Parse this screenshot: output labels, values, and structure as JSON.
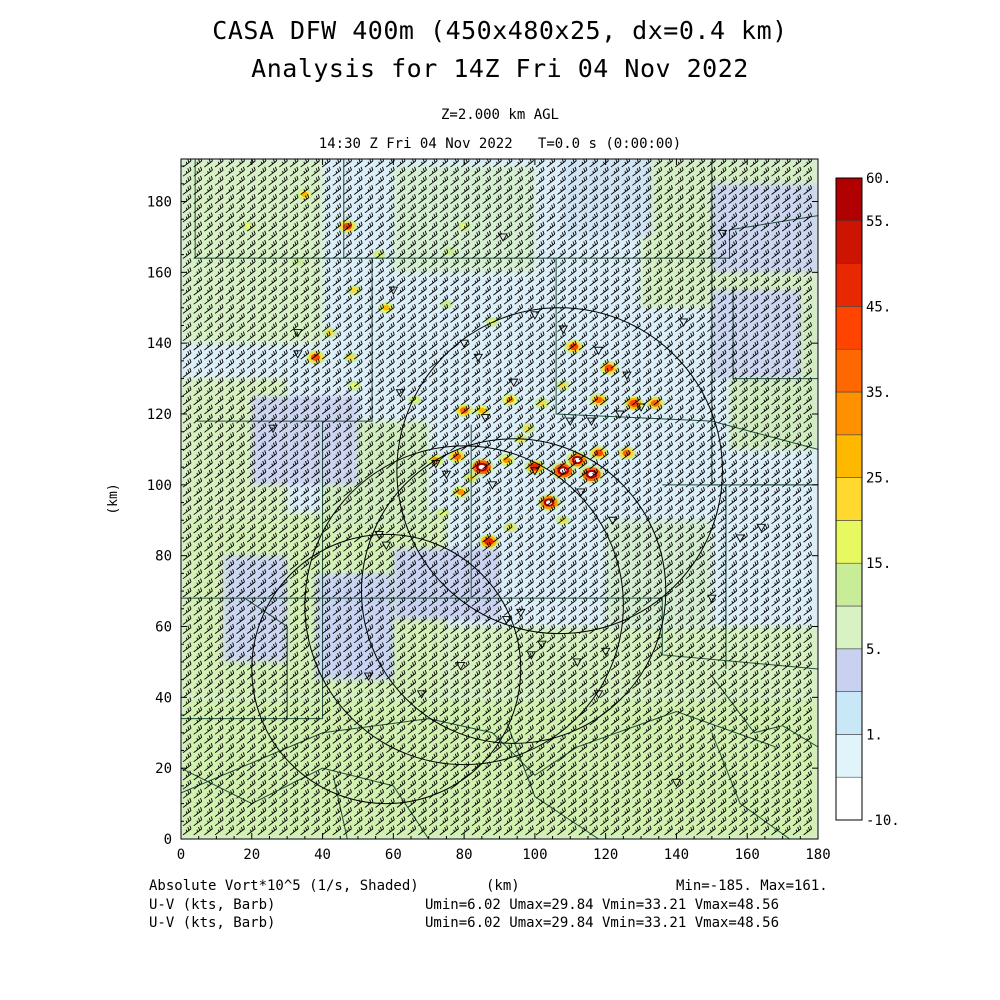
{
  "title_line1": "CASA DFW 400m (450x480x25, dx=0.4 km)",
  "title_line2": "Analysis for 14Z Fri 04 Nov 2022",
  "level_label": "Z=2.000 km AGL",
  "time_label": "14:30 Z Fri 04 Nov 2022   T=0.0 s (0:00:00)",
  "axes": {
    "x_unit": "(km)",
    "y_unit": "(km)",
    "x_range": [
      0,
      180
    ],
    "y_range": [
      0,
      192
    ],
    "x_ticks": [
      "0",
      "20",
      "40",
      "60",
      "80",
      "100",
      "120",
      "140",
      "160",
      "180"
    ],
    "y_ticks": [
      "0",
      "20",
      "40",
      "60",
      "80",
      "100",
      "120",
      "140",
      "160",
      "180"
    ]
  },
  "colorbar": {
    "labels": [
      "60.",
      "55.",
      "45.",
      "35.",
      "25.",
      "15.",
      "5.",
      "1.",
      "-10."
    ],
    "colors": [
      "#ffffff",
      "#e0f4fa",
      "#c8e8f8",
      "#c8d2f0",
      "#d8f2c4",
      "#c8ec98",
      "#e8f860",
      "#ffd830",
      "#ffb800",
      "#ff9000",
      "#ff6800",
      "#ff4400",
      "#e82800",
      "#cc1400",
      "#b00000"
    ]
  },
  "footer": {
    "field_label": "Absolute Vort*10^5 (1/s, Shaded)",
    "x_unit": "(km)",
    "minmax": "Min=-185. Max=161.",
    "uv_label_1": "U-V (kts, Barb)",
    "uv_stats_1": "Umin=6.02 Umax=29.84 Vmin=33.21 Vmax=48.56",
    "uv_label_2": "U-V (kts, Barb)",
    "uv_stats_2": "Umin=6.02 Umax=29.84 Vmin=33.21 Vmax=48.56"
  },
  "radar_rings_km": [
    {
      "x": 94,
      "y": 70,
      "r": 43
    },
    {
      "x": 58,
      "y": 48,
      "r": 38
    },
    {
      "x": 80,
      "y": 66,
      "r": 45
    },
    {
      "x": 107,
      "y": 104,
      "r": 46
    }
  ],
  "radar_sites_km": [
    [
      33,
      143
    ],
    [
      33,
      137
    ],
    [
      62,
      126
    ],
    [
      72,
      106
    ],
    [
      75,
      103
    ],
    [
      86,
      119
    ],
    [
      94,
      129
    ],
    [
      100,
      148
    ],
    [
      108,
      144
    ],
    [
      118,
      138
    ],
    [
      126,
      131
    ],
    [
      110,
      118
    ],
    [
      116,
      118
    ],
    [
      124,
      120
    ],
    [
      130,
      122
    ],
    [
      88,
      100
    ],
    [
      100,
      104
    ],
    [
      113,
      98
    ],
    [
      122,
      90
    ],
    [
      56,
      86
    ],
    [
      58,
      83
    ],
    [
      96,
      64
    ],
    [
      92,
      62
    ],
    [
      102,
      55
    ],
    [
      99,
      52
    ],
    [
      112,
      50
    ],
    [
      120,
      53
    ],
    [
      79,
      49
    ],
    [
      68,
      41
    ],
    [
      53,
      46
    ],
    [
      118,
      41
    ],
    [
      140,
      16
    ],
    [
      26,
      116
    ],
    [
      80,
      140
    ],
    [
      84,
      136
    ],
    [
      91,
      170
    ],
    [
      60,
      155
    ],
    [
      153,
      171
    ],
    [
      142,
      146
    ],
    [
      158,
      85
    ],
    [
      150,
      68
    ],
    [
      164,
      88
    ]
  ],
  "vorticity_maxima_km": [
    {
      "x": 19,
      "y": 173,
      "v": 18
    },
    {
      "x": 35,
      "y": 182,
      "v": 25
    },
    {
      "x": 47,
      "y": 173,
      "v": 40
    },
    {
      "x": 56,
      "y": 165,
      "v": 15
    },
    {
      "x": 33,
      "y": 163,
      "v": 14
    },
    {
      "x": 80,
      "y": 173,
      "v": 18
    },
    {
      "x": 76,
      "y": 166,
      "v": 14
    },
    {
      "x": 49,
      "y": 155,
      "v": 22
    },
    {
      "x": 58,
      "y": 150,
      "v": 26
    },
    {
      "x": 42,
      "y": 143,
      "v": 22
    },
    {
      "x": 38,
      "y": 136,
      "v": 40
    },
    {
      "x": 48,
      "y": 136,
      "v": 20
    },
    {
      "x": 49,
      "y": 128,
      "v": 18
    },
    {
      "x": 75,
      "y": 151,
      "v": 14
    },
    {
      "x": 88,
      "y": 146,
      "v": 15
    },
    {
      "x": 66,
      "y": 124,
      "v": 16
    },
    {
      "x": 80,
      "y": 121,
      "v": 35
    },
    {
      "x": 85,
      "y": 121,
      "v": 25
    },
    {
      "x": 93,
      "y": 124,
      "v": 30
    },
    {
      "x": 96,
      "y": 113,
      "v": 20
    },
    {
      "x": 102,
      "y": 123,
      "v": 24
    },
    {
      "x": 111,
      "y": 139,
      "v": 40
    },
    {
      "x": 108,
      "y": 128,
      "v": 22
    },
    {
      "x": 121,
      "y": 133,
      "v": 40
    },
    {
      "x": 118,
      "y": 124,
      "v": 36
    },
    {
      "x": 128,
      "y": 123,
      "v": 42
    },
    {
      "x": 134,
      "y": 123,
      "v": 38
    },
    {
      "x": 78,
      "y": 108,
      "v": 36
    },
    {
      "x": 72,
      "y": 107,
      "v": 30
    },
    {
      "x": 85,
      "y": 105,
      "v": 60
    },
    {
      "x": 92,
      "y": 107,
      "v": 30
    },
    {
      "x": 100,
      "y": 105,
      "v": 45
    },
    {
      "x": 108,
      "y": 104,
      "v": 60
    },
    {
      "x": 112,
      "y": 107,
      "v": 55
    },
    {
      "x": 116,
      "y": 103,
      "v": 60
    },
    {
      "x": 118,
      "y": 109,
      "v": 40
    },
    {
      "x": 126,
      "y": 109,
      "v": 35
    },
    {
      "x": 79,
      "y": 98,
      "v": 32
    },
    {
      "x": 82,
      "y": 102,
      "v": 24
    },
    {
      "x": 104,
      "y": 95,
      "v": 55
    },
    {
      "x": 108,
      "y": 90,
      "v": 20
    },
    {
      "x": 87,
      "y": 84,
      "v": 45
    },
    {
      "x": 93,
      "y": 88,
      "v": 20
    },
    {
      "x": 74,
      "y": 92,
      "v": 18
    },
    {
      "x": 98,
      "y": 116,
      "v": 22
    }
  ]
}
